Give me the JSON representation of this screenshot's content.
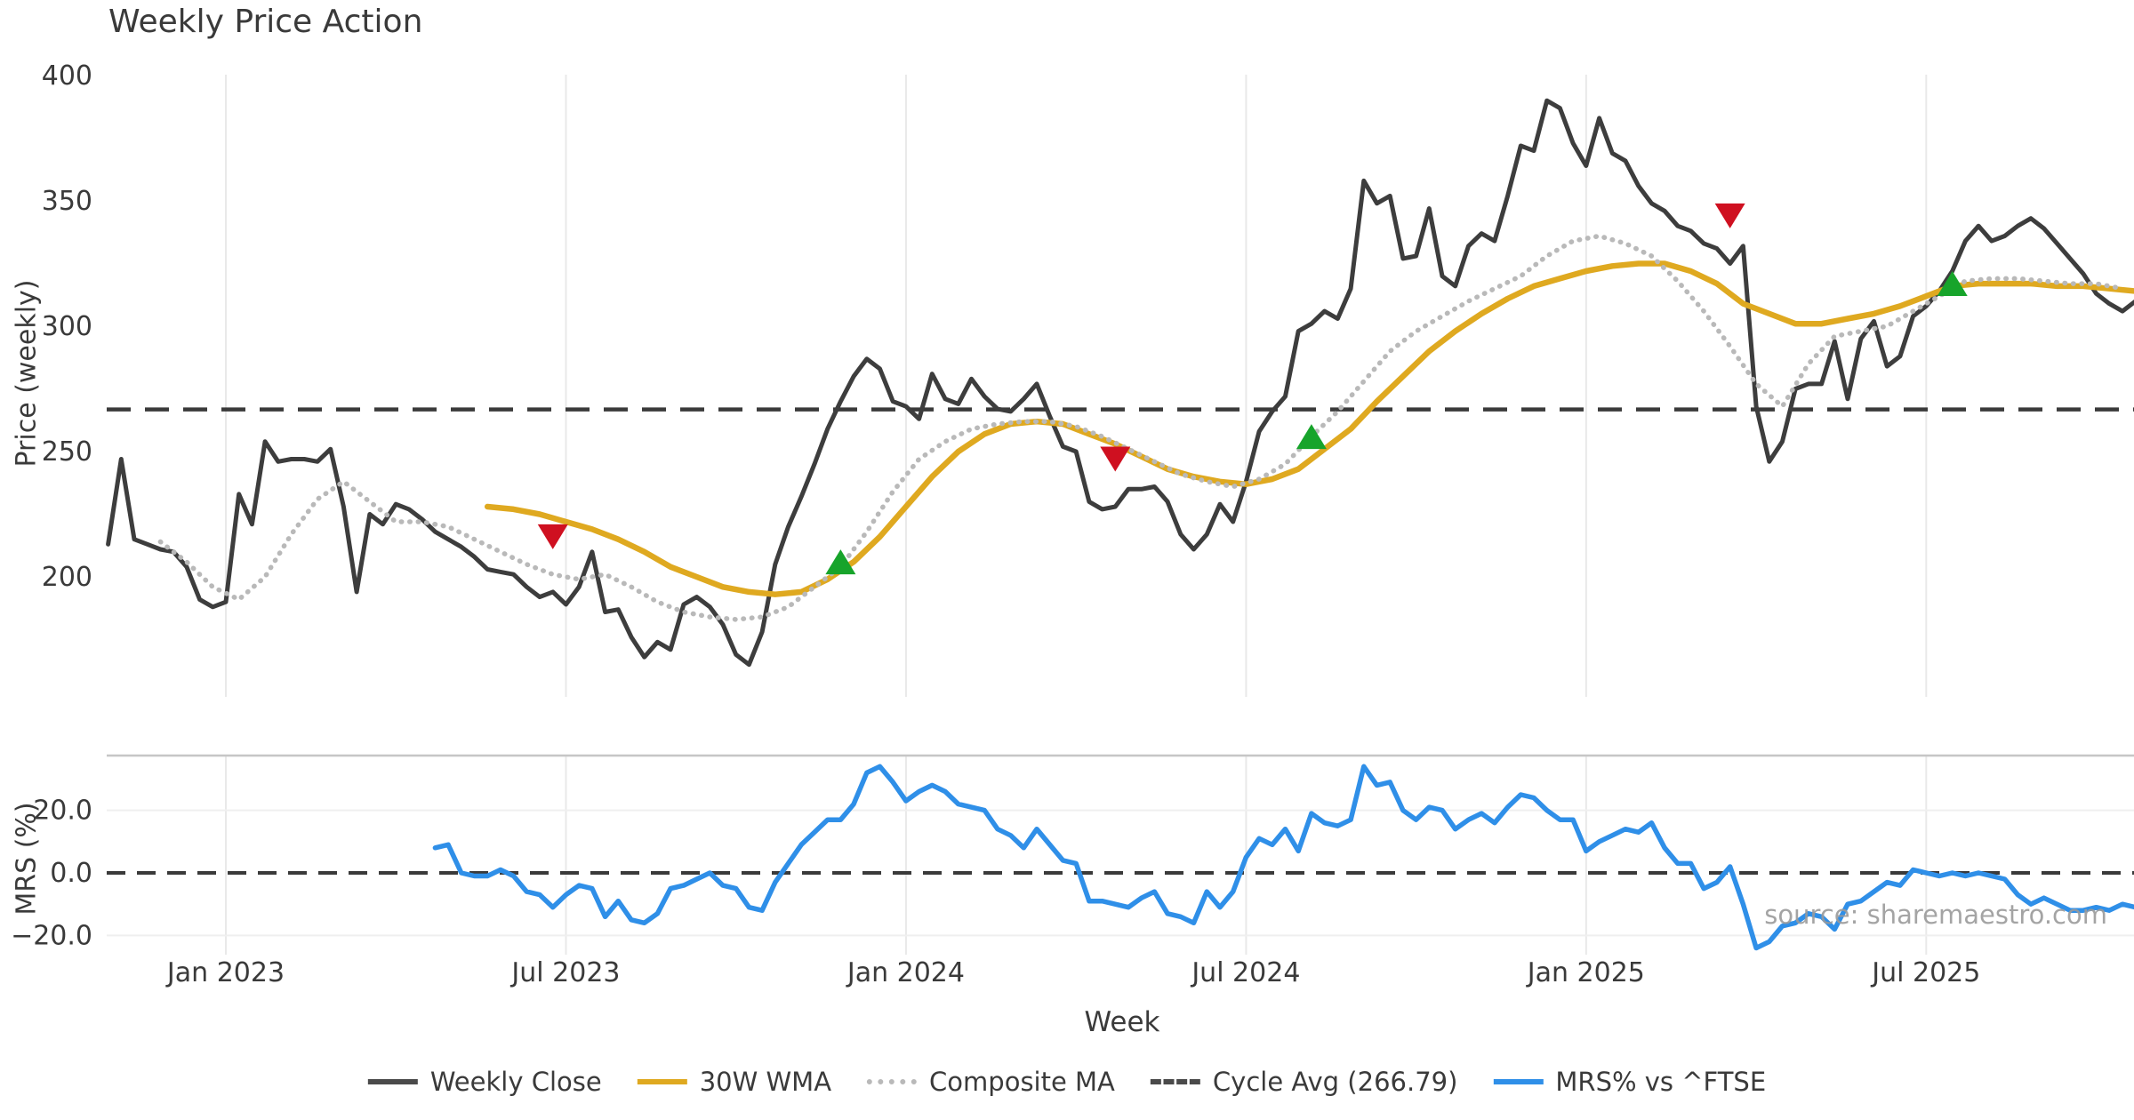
{
  "title": "Weekly Price Action",
  "watermark": "source: sharemaestro.com",
  "x_axis": {
    "label": "Week",
    "ticks": [
      {
        "week": 0,
        "label": "Jan 2023"
      },
      {
        "week": 26,
        "label": "Jul 2023"
      },
      {
        "week": 52,
        "label": "Jan 2024"
      },
      {
        "week": 78,
        "label": "Jul 2024"
      },
      {
        "week": 104,
        "label": "Jan 2025"
      },
      {
        "week": 130,
        "label": "Jul 2025"
      }
    ]
  },
  "price_axis": {
    "label": "Price (weekly)",
    "ticks": [
      400,
      350,
      300,
      250,
      200
    ]
  },
  "mrs_axis": {
    "label": "MRS (%)",
    "ticks": [
      {
        "v": 20,
        "label": "20.0"
      },
      {
        "v": 0,
        "label": "0.0"
      },
      {
        "v": -20,
        "label": "−20.0"
      }
    ]
  },
  "legend": [
    {
      "label": "Weekly Close",
      "style": "solid",
      "color": "#4a4a4a"
    },
    {
      "label": "30W WMA",
      "style": "solid",
      "color": "#dfa920"
    },
    {
      "label": "Composite MA",
      "style": "dotted",
      "color": "#b9b9b9"
    },
    {
      "label": "Cycle Avg (266.79)",
      "style": "dashed",
      "color": "#4a4a4a"
    },
    {
      "label": "MRS% vs ^FTSE",
      "style": "solid",
      "color": "#2f8fe8"
    }
  ],
  "colors": {
    "close": "#3d3d3d",
    "wma30": "#dfa920",
    "composite": "#b9b9b9",
    "cycle_avg": "#3a3a3a",
    "mrs": "#2f8fe8",
    "sell": "#cf1020",
    "buy": "#17a42b",
    "grid": "#e9e9e9",
    "panel_border": "#c6c6c6",
    "tick_text": "#3a3a3a"
  },
  "chart_data": [
    {
      "type": "line",
      "title": "Weekly Price Action",
      "xlabel": "Week",
      "ylabel": "Price (weekly)",
      "ylim": [
        160,
        405
      ],
      "x_unit": "weeks from Jan 2023; ticks every 26 weeks",
      "grid": "vertical-only",
      "legend_position": "bottom",
      "cycle_avg": 266.79,
      "series": [
        {
          "name": "Weekly Close",
          "style": "solid",
          "width": 5,
          "color": "#3d3d3d",
          "start_week": -9,
          "step": 1,
          "values": [
            213,
            247,
            215,
            213,
            211,
            210,
            204,
            191,
            188,
            190,
            233,
            221,
            254,
            246,
            247,
            247,
            246,
            251,
            228,
            194,
            225,
            221,
            229,
            227,
            223,
            218,
            215,
            212,
            208,
            203,
            202,
            201,
            196,
            192,
            194,
            189,
            196,
            210,
            186,
            187,
            176,
            168,
            174,
            171,
            189,
            192,
            188,
            181,
            169,
            165,
            178,
            205,
            220,
            232,
            245,
            259,
            270,
            280,
            287,
            283,
            270,
            268,
            263,
            281,
            271,
            269,
            279,
            272,
            267,
            266,
            271,
            277,
            264,
            252,
            250,
            230,
            227,
            228,
            235,
            235,
            236,
            230,
            217,
            211,
            217,
            229,
            222,
            238,
            258,
            266,
            272,
            298,
            301,
            306,
            303,
            315,
            358,
            349,
            352,
            327,
            328,
            347,
            320,
            316,
            332,
            337,
            334,
            352,
            372,
            370,
            390,
            387,
            373,
            364,
            383,
            369,
            366,
            356,
            349,
            346,
            340,
            338,
            333,
            331,
            325,
            332,
            268,
            246,
            254,
            275,
            277,
            277,
            294,
            271,
            295,
            302,
            284,
            288,
            304,
            308,
            314,
            322,
            334,
            340,
            334,
            336,
            340,
            343,
            339,
            333,
            327,
            321,
            313,
            309,
            306,
            310,
            308
          ]
        },
        {
          "name": "30W WMA",
          "style": "solid",
          "width": 6.5,
          "color": "#dfa920",
          "start_week": 20,
          "step": 2,
          "values": [
            228,
            227,
            225,
            222,
            219,
            215,
            210,
            204,
            200,
            196,
            194,
            193,
            194,
            199,
            206,
            216,
            228,
            240,
            250,
            257,
            261,
            262,
            261,
            257,
            253,
            248,
            243,
            240,
            238,
            237,
            239,
            243,
            251,
            259,
            270,
            280,
            290,
            298,
            305,
            311,
            316,
            319,
            322,
            324,
            325,
            325,
            322,
            317,
            309,
            305,
            301,
            301,
            303,
            305,
            308,
            312,
            316,
            317,
            317,
            317,
            316,
            316,
            315,
            314
          ]
        },
        {
          "name": "Composite MA",
          "style": "dotted",
          "width": 5,
          "color": "#b9b9b9",
          "start_week": -5,
          "step": 2,
          "values": [
            214,
            206,
            196,
            191,
            200,
            217,
            231,
            238,
            230,
            222,
            222,
            220,
            215,
            210,
            205,
            201,
            199,
            201,
            196,
            190,
            186,
            184,
            183,
            184,
            188,
            196,
            204,
            218,
            234,
            247,
            254,
            259,
            261,
            262,
            262,
            260,
            256,
            251,
            246,
            241,
            238,
            236,
            239,
            245,
            256,
            266,
            278,
            290,
            298,
            304,
            310,
            315,
            320,
            328,
            334,
            336,
            333,
            328,
            318,
            306,
            292,
            277,
            268,
            285,
            296,
            298,
            300,
            306,
            312,
            318,
            319,
            319,
            318,
            317,
            317,
            315
          ]
        },
        {
          "name": "Cycle Avg (266.79)",
          "style": "dashed",
          "width": 4.5,
          "color": "#3a3a3a",
          "constant": 266.79
        }
      ],
      "markers": {
        "sell": {
          "shape": "triangle-down",
          "color": "#cf1020",
          "points": [
            [
              25,
              216
            ],
            [
              68,
              247
            ],
            [
              115,
              344
            ]
          ]
        },
        "buy": {
          "shape": "triangle-up",
          "color": "#17a42b",
          "points": [
            [
              47,
              206
            ],
            [
              83,
              256
            ],
            [
              132,
              317
            ]
          ]
        }
      }
    },
    {
      "type": "line",
      "ylabel": "MRS (%)",
      "ylim": [
        -30,
        38
      ],
      "zero_line": 0,
      "grid": "horizontal at +20/-20, vertical at date ticks",
      "series": [
        {
          "name": "MRS% vs ^FTSE",
          "style": "solid",
          "width": 5.5,
          "color": "#2f8fe8",
          "start_week": 16,
          "step": 1,
          "values": [
            8,
            9,
            0,
            -1,
            -1,
            1,
            -1,
            -6,
            -7,
            -11,
            -7,
            -4,
            -5,
            -14,
            -9,
            -15,
            -16,
            -13,
            -5,
            -4,
            -2,
            0,
            -4,
            -5,
            -11,
            -12,
            -3,
            3,
            9,
            13,
            17,
            17,
            22,
            32,
            34,
            29,
            23,
            26,
            28,
            26,
            22,
            21,
            20,
            14,
            12,
            8,
            14,
            9,
            4,
            3,
            -9,
            -9,
            -10,
            -11,
            -8,
            -6,
            -13,
            -14,
            -16,
            -6,
            -11,
            -6,
            5,
            11,
            9,
            14,
            7,
            19,
            16,
            15,
            17,
            34,
            28,
            29,
            20,
            17,
            21,
            20,
            14,
            17,
            19,
            16,
            21,
            25,
            24,
            20,
            17,
            17,
            7,
            10,
            12,
            14,
            13,
            16,
            8,
            3,
            3,
            -5,
            -3,
            2,
            -10,
            -24,
            -22,
            -17,
            -16,
            -13,
            -14,
            -18,
            -10,
            -9,
            -6,
            -3,
            -4,
            1,
            0,
            -1,
            0,
            -1,
            0,
            -1,
            -2,
            -7,
            -10,
            -8,
            -10,
            -12,
            -12,
            -11,
            -12,
            -10,
            -11
          ]
        }
      ]
    }
  ]
}
